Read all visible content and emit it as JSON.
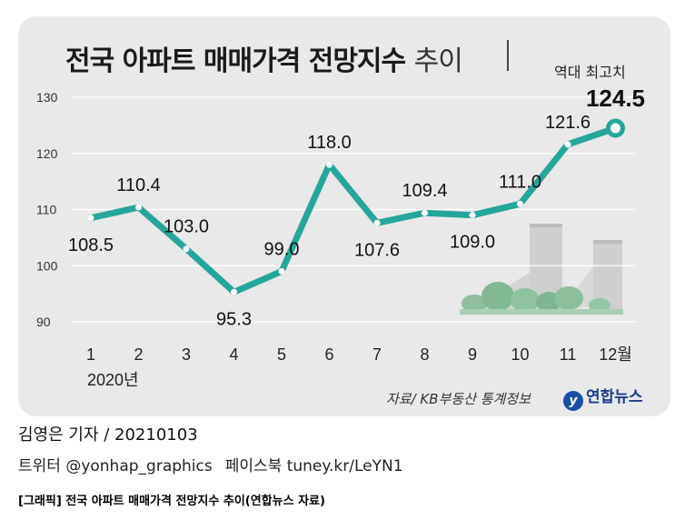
{
  "chart_data": {
    "type": "line",
    "title": "전국 아파트 매매가격 전망지수 추이",
    "title_main": "전국 아파트 매매가격 전망지수",
    "title_sub": "추이",
    "categories": [
      "1",
      "2",
      "3",
      "4",
      "5",
      "6",
      "7",
      "8",
      "9",
      "10",
      "11",
      "12월"
    ],
    "year_label": "2020년",
    "values": [
      108.5,
      110.4,
      103.0,
      95.3,
      99.0,
      118.0,
      107.6,
      109.4,
      109.0,
      111.0,
      121.6,
      124.5
    ],
    "value_labels": [
      "108.5",
      "110.4",
      "103.0",
      "95.3",
      "99.0",
      "118.0",
      "107.6",
      "109.4",
      "109.0",
      "111.0",
      "121.6",
      "124.5"
    ],
    "yticks": [
      90,
      100,
      110,
      120,
      130
    ],
    "ylim": [
      90,
      130
    ],
    "grid": true,
    "annotation": "역대 최고치",
    "line_color": "#26a69a",
    "source": "자료/ KB부동산 통계정보"
  },
  "footer": {
    "byline": "김영은 기자 / 20210103",
    "twitter": "트위터 @yonhap_graphics",
    "facebook": "페이스북 tuney.kr/LeYN1",
    "caption": "[그래픽] 전국 아파트 매매가격 전망지수 추이(연합뉴스 자료)"
  },
  "logo": {
    "text": "연합뉴스",
    "color": "#1a3c8c"
  }
}
